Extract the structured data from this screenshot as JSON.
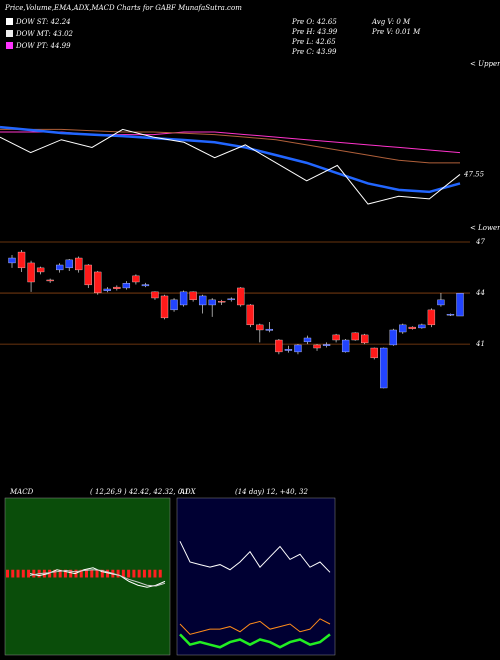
{
  "header": {
    "title": "Price,Volume,EMA,ADX,MACD Charts for GABF MunafaSutra.com",
    "legend": [
      {
        "text": "DOW ST: 42.24",
        "color": "#ffffff"
      },
      {
        "text": "DOW MT: 43.02",
        "color": "#eeeeee"
      },
      {
        "text": "DOW PT: 44.99",
        "color": "#ff33ff"
      }
    ],
    "prev": [
      "Pre  O: 42.65",
      "Pre  H: 43.99",
      "Pre  L: 42.65",
      "Pre  C: 43.99"
    ],
    "volume": [
      "Avg V: 0  M",
      "Pre   V: 0.01 M"
    ]
  },
  "chart_data": [
    {
      "type": "line",
      "upper_label": "< Upper",
      "lower_label": "< Lower",
      "ylim": [
        45,
        52
      ],
      "series": [
        {
          "color": "#ff33cc",
          "values": [
            49.2,
            49.2,
            49.2,
            49.1,
            49.1,
            49.1,
            49.2,
            49.2,
            49.1,
            49.0,
            48.9,
            48.8,
            48.7,
            48.6,
            48.5,
            48.4
          ]
        },
        {
          "color": "#b0603a",
          "values": [
            49.3,
            49.3,
            49.3,
            49.25,
            49.2,
            49.2,
            49.15,
            49.1,
            49.0,
            48.9,
            48.7,
            48.5,
            48.3,
            48.1,
            48.0,
            48.0
          ]
        },
        {
          "color": "#2266ff",
          "values": [
            49.39,
            49.28,
            49.16,
            49.1,
            49.04,
            48.96,
            48.89,
            48.8,
            48.6,
            48.3,
            48.0,
            47.6,
            47.2,
            46.95,
            46.87,
            47.2
          ]
        },
        {
          "color": "#ffffff",
          "values": [
            49.0,
            48.4,
            48.9,
            48.6,
            49.3,
            49.0,
            48.8,
            48.2,
            48.7,
            48.0,
            47.3,
            47.9,
            46.4,
            46.7,
            46.6,
            47.55
          ]
        }
      ]
    },
    {
      "type": "candlestick",
      "ylim": [
        33.6,
        48
      ],
      "yticks": [
        47,
        44,
        41
      ],
      "up_color": "#2244ff",
      "down_color": "#ff1a1a",
      "grid_color": "#8b4513",
      "ohlc": [
        [
          45.77,
          46.24,
          45.48,
          46.06
        ],
        [
          46.41,
          46.53,
          45.24,
          45.48
        ],
        [
          45.77,
          45.9,
          44.07,
          44.65
        ],
        [
          45.48,
          45.55,
          45.1,
          45.24
        ],
        [
          44.77,
          44.85,
          44.6,
          44.72
        ],
        [
          45.36,
          45.75,
          45.2,
          45.65
        ],
        [
          45.48,
          46.0,
          45.3,
          45.95
        ],
        [
          46.06,
          46.15,
          45.2,
          45.36
        ],
        [
          45.65,
          45.7,
          44.3,
          44.48
        ],
        [
          45.24,
          45.3,
          43.9,
          44.01
        ],
        [
          44.13,
          44.35,
          44.05,
          44.24
        ],
        [
          44.35,
          44.45,
          44.15,
          44.25
        ],
        [
          44.3,
          44.7,
          44.2,
          44.58
        ],
        [
          45.01,
          45.1,
          44.5,
          44.65
        ],
        [
          44.42,
          44.6,
          44.35,
          44.5
        ],
        [
          44.07,
          44.1,
          43.6,
          43.71
        ],
        [
          43.83,
          43.9,
          42.45,
          42.54
        ],
        [
          43.01,
          43.7,
          42.9,
          43.6
        ],
        [
          43.3,
          44.15,
          43.2,
          44.07
        ],
        [
          44.07,
          44.1,
          43.5,
          43.6
        ],
        [
          43.3,
          43.9,
          42.8,
          43.83
        ],
        [
          43.3,
          43.7,
          42.6,
          43.6
        ],
        [
          43.52,
          43.6,
          43.3,
          43.46
        ],
        [
          43.6,
          43.75,
          43.5,
          43.66
        ],
        [
          44.3,
          44.35,
          43.2,
          43.3
        ],
        [
          43.3,
          43.35,
          42.0,
          42.13
        ],
        [
          42.13,
          42.2,
          41.1,
          41.83
        ],
        [
          41.8,
          42.3,
          41.7,
          41.88
        ],
        [
          41.24,
          41.3,
          40.4,
          40.54
        ],
        [
          40.62,
          40.9,
          40.5,
          40.7
        ],
        [
          40.54,
          41.0,
          40.4,
          40.95
        ],
        [
          41.13,
          41.5,
          41.0,
          41.36
        ],
        [
          40.95,
          41.0,
          40.6,
          40.77
        ],
        [
          40.9,
          41.1,
          40.8,
          40.98
        ],
        [
          41.54,
          41.6,
          41.1,
          41.24
        ],
        [
          40.54,
          41.3,
          40.5,
          41.24
        ],
        [
          41.66,
          41.7,
          41.2,
          41.24
        ],
        [
          41.54,
          41.6,
          41.0,
          41.07
        ],
        [
          40.77,
          40.8,
          40.1,
          40.19
        ],
        [
          38.42,
          40.8,
          38.4,
          40.77
        ],
        [
          40.95,
          41.9,
          40.9,
          41.83
        ],
        [
          41.71,
          42.2,
          41.6,
          42.13
        ],
        [
          42.0,
          42.05,
          41.85,
          41.9
        ],
        [
          41.95,
          42.2,
          41.9,
          42.13
        ],
        [
          43.01,
          43.1,
          42.0,
          42.13
        ],
        [
          43.3,
          44.0,
          43.2,
          43.6
        ],
        [
          42.71,
          42.8,
          42.65,
          42.76
        ],
        [
          42.65,
          43.99,
          42.65,
          43.99
        ]
      ]
    },
    {
      "type": "macd",
      "title": "MACD",
      "subtitle": "( 12,26,9 ) 42.42, 42.32, 0.1",
      "ylim": [
        -2,
        2
      ],
      "bar_color": "#ff2020",
      "histogram": [
        0.2,
        0.2,
        0.2,
        0.2,
        0.2,
        0.2,
        0.2,
        0.2,
        0.2,
        0.2,
        0.2,
        0.2,
        0.2,
        0.2,
        0.2,
        0.2,
        0.2,
        0.2,
        0.2,
        0.2,
        0.2,
        0.2,
        0.2,
        0.2,
        0.2,
        0.2,
        0.2,
        0.2,
        0.2,
        0.2
      ],
      "series": [
        {
          "color": "#ffffff",
          "values": [
            0.1,
            0.05,
            0.1,
            0.2,
            0.15,
            0.1,
            0.2,
            0.25,
            0.15,
            0.1,
            0.05,
            -0.1,
            -0.2,
            -0.25,
            -0.2,
            -0.1
          ]
        },
        {
          "color": "#cccccc",
          "values": [
            0.05,
            0.1,
            0.12,
            0.15,
            0.18,
            0.15,
            0.18,
            0.2,
            0.18,
            0.12,
            0.05,
            -0.05,
            -0.12,
            -0.2,
            -0.22,
            -0.15
          ]
        }
      ]
    },
    {
      "type": "adx",
      "title": "ADX",
      "subtitle": "(14 day) 12, +40, 32",
      "ylim": [
        0,
        60
      ],
      "series": [
        {
          "color": "#ffffff",
          "values": [
            44,
            36,
            35,
            34,
            35,
            33,
            36,
            40,
            34,
            38,
            42,
            37,
            39,
            34,
            36,
            32
          ]
        },
        {
          "color": "#ff8c1a",
          "values": [
            12,
            8,
            9,
            10,
            10,
            11,
            9,
            12,
            13,
            10,
            11,
            12,
            9,
            10,
            14,
            12
          ]
        },
        {
          "color": "#22ee22",
          "values": [
            8,
            4,
            5,
            4,
            3,
            5,
            6,
            4,
            6,
            5,
            3,
            5,
            6,
            4,
            5,
            8
          ]
        }
      ]
    }
  ]
}
